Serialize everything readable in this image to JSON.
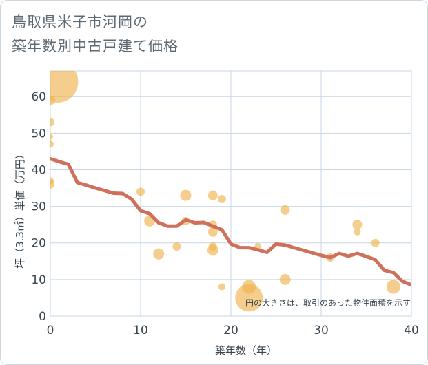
{
  "title_lines": [
    "鳥取県米子市河岡の",
    "築年数別中古戸建て価格"
  ],
  "chart_data": {
    "type": "scatter",
    "title": "鳥取県米子市河岡の築年数別中古戸建て価格",
    "xlabel": "築年数（年）",
    "ylabel": "坪（3.3㎡）単価（万円）",
    "xlim": [
      0,
      40
    ],
    "ylim": [
      0,
      67
    ],
    "xticks": [
      0,
      10,
      20,
      30,
      40
    ],
    "yticks": [
      0,
      10,
      20,
      30,
      40,
      50,
      60
    ],
    "annotation": "円の大きさは、取引のあった物件面積を示す",
    "colors": {
      "bubble": "#f0b24e",
      "line": "#d0705a",
      "grid": "#c8d6e4"
    },
    "bubbles": [
      {
        "x": 0.8,
        "y": 64,
        "size": 30
      },
      {
        "x": 0,
        "y": 59,
        "size": 7
      },
      {
        "x": 0,
        "y": 53,
        "size": 6
      },
      {
        "x": 0,
        "y": 49,
        "size": 4
      },
      {
        "x": 0,
        "y": 47,
        "size": 5
      },
      {
        "x": 0,
        "y": 37,
        "size": 5
      },
      {
        "x": 0,
        "y": 36,
        "size": 6
      },
      {
        "x": 10,
        "y": 34,
        "size": 6
      },
      {
        "x": 11,
        "y": 26,
        "size": 8
      },
      {
        "x": 12,
        "y": 17,
        "size": 8
      },
      {
        "x": 14,
        "y": 19,
        "size": 6
      },
      {
        "x": 15,
        "y": 33,
        "size": 8
      },
      {
        "x": 15,
        "y": 26,
        "size": 6
      },
      {
        "x": 18,
        "y": 33,
        "size": 7
      },
      {
        "x": 18,
        "y": 25,
        "size": 6
      },
      {
        "x": 18,
        "y": 23,
        "size": 7
      },
      {
        "x": 18,
        "y": 19,
        "size": 6
      },
      {
        "x": 18,
        "y": 18,
        "size": 8
      },
      {
        "x": 19,
        "y": 32,
        "size": 6
      },
      {
        "x": 19,
        "y": 8,
        "size": 5
      },
      {
        "x": 22,
        "y": 8,
        "size": 10
      },
      {
        "x": 22,
        "y": 5,
        "size": 20
      },
      {
        "x": 23,
        "y": 19,
        "size": 5
      },
      {
        "x": 26,
        "y": 29,
        "size": 7
      },
      {
        "x": 26,
        "y": 10,
        "size": 8
      },
      {
        "x": 31,
        "y": 16,
        "size": 6
      },
      {
        "x": 34,
        "y": 25,
        "size": 7
      },
      {
        "x": 34,
        "y": 23,
        "size": 5
      },
      {
        "x": 36,
        "y": 20,
        "size": 6
      },
      {
        "x": 38,
        "y": 8,
        "size": 10
      }
    ],
    "trend_line": {
      "x": [
        0,
        1,
        2,
        3,
        4,
        5,
        6,
        7,
        8,
        9,
        10,
        11,
        12,
        13,
        14,
        15,
        16,
        17,
        18,
        19,
        20,
        21,
        22,
        23,
        24,
        25,
        26,
        27,
        28,
        29,
        30,
        31,
        32,
        33,
        34,
        35,
        36,
        37,
        38,
        39,
        40
      ],
      "y": [
        43,
        42.2,
        41.5,
        36.5,
        35.8,
        35,
        34.3,
        33.6,
        33.5,
        32,
        28.8,
        28,
        25.5,
        24.6,
        24.6,
        26.3,
        25.5,
        25.6,
        24.6,
        23.6,
        19.7,
        18.7,
        18.7,
        18.1,
        17.4,
        19.7,
        19.4,
        18.7,
        18,
        17.3,
        16.6,
        16,
        17.1,
        16.4,
        17.1,
        16.3,
        15.4,
        12.5,
        11.9,
        9.5,
        8.5
      ]
    }
  }
}
